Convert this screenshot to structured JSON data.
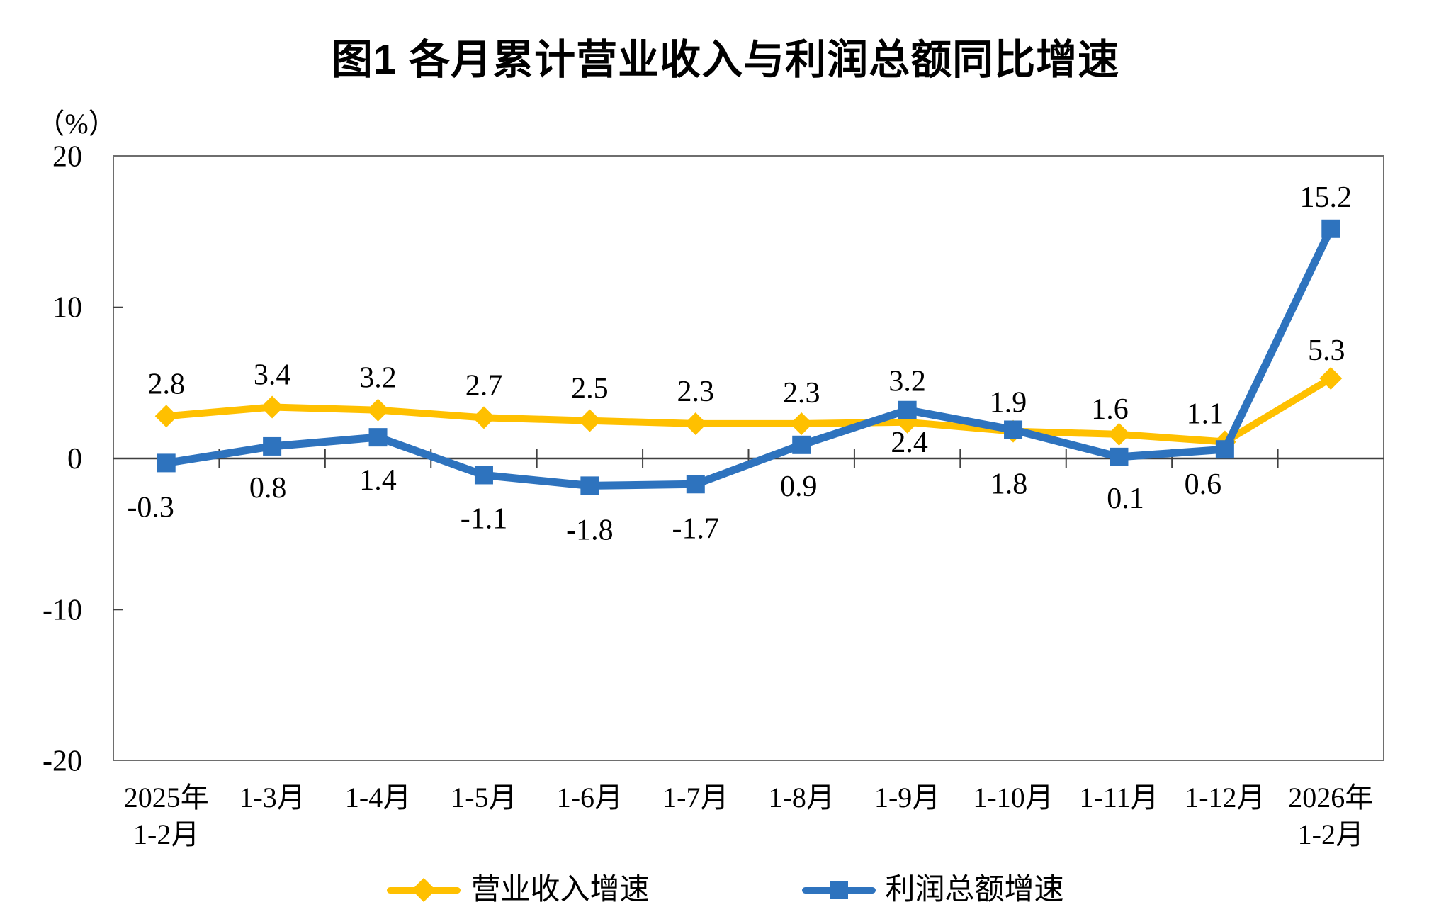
{
  "title": "图1  各月累计营业收入与利润总额同比增速",
  "y_unit_label": "（%）",
  "legend": [
    {
      "label": "营业收入增速",
      "color": "#FFC000",
      "marker": "diamond"
    },
    {
      "label": "利润总额增速",
      "color": "#2E73BE",
      "marker": "square"
    }
  ],
  "colors": {
    "revenue_line": "#FFC000",
    "profit_line": "#2E73BE",
    "frame": "#6E6E6E",
    "axis": "#404040",
    "text": "#000000"
  },
  "chart_data": {
    "type": "line",
    "title": "图1  各月累计营业收入与利润总额同比增速",
    "xlabel": "",
    "ylabel": "（%）",
    "ylim": [
      -20,
      20
    ],
    "yticks": [
      20,
      10,
      0,
      -10,
      -20
    ],
    "grid": false,
    "legend_position": "bottom",
    "categories": [
      [
        "2025年",
        "1-2月"
      ],
      [
        "1-3月"
      ],
      [
        "1-4月"
      ],
      [
        "1-5月"
      ],
      [
        "1-6月"
      ],
      [
        "1-7月"
      ],
      [
        "1-8月"
      ],
      [
        "1-9月"
      ],
      [
        "1-10月"
      ],
      [
        "1-11月"
      ],
      [
        "1-12月"
      ],
      [
        "2026年",
        "1-2月"
      ]
    ],
    "series": [
      {
        "name": "营业收入增速",
        "color": "#FFC000",
        "marker": "diamond",
        "values": [
          2.8,
          3.4,
          3.2,
          2.7,
          2.5,
          2.3,
          2.3,
          2.4,
          1.8,
          1.6,
          1.1,
          5.3
        ]
      },
      {
        "name": "利润总额增速",
        "color": "#2E73BE",
        "marker": "square",
        "values": [
          -0.3,
          0.8,
          1.4,
          -1.1,
          -1.8,
          -1.7,
          0.9,
          3.2,
          1.9,
          0.1,
          0.6,
          15.2
        ]
      }
    ]
  }
}
